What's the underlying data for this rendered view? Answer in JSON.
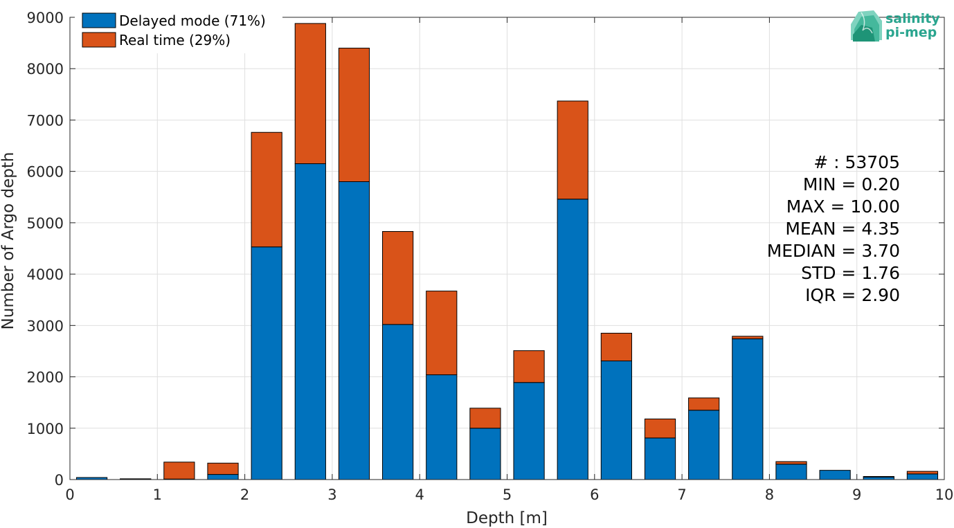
{
  "chart_data": {
    "type": "bar",
    "stacked": true,
    "xlabel": "Depth [m]",
    "ylabel": "Number of Argo depth",
    "xlim": [
      0,
      10
    ],
    "ylim": [
      0,
      9000
    ],
    "xticks": [
      "0",
      "1",
      "2",
      "3",
      "4",
      "5",
      "6",
      "7",
      "8",
      "9",
      "10"
    ],
    "yticks": [
      "0",
      "1000",
      "2000",
      "3000",
      "4000",
      "5000",
      "6000",
      "7000",
      "8000",
      "9000"
    ],
    "grid": true,
    "legend_position": "top-left",
    "bin_width": 0.5,
    "x": [
      0.25,
      0.75,
      1.25,
      1.75,
      2.25,
      2.75,
      3.25,
      3.75,
      4.25,
      4.75,
      5.25,
      5.75,
      6.25,
      6.75,
      7.25,
      7.75,
      8.25,
      8.75,
      9.25,
      9.75
    ],
    "series": [
      {
        "name": "Delayed mode (71%)",
        "color": "#0072bd",
        "values": [
          40,
          10,
          10,
          100,
          4530,
          6150,
          5800,
          3020,
          2040,
          1000,
          1890,
          5460,
          2310,
          810,
          1350,
          2740,
          300,
          180,
          50,
          110
        ]
      },
      {
        "name": "Real time (29%)",
        "color": "#d95319",
        "values": [
          0,
          5,
          330,
          220,
          2230,
          2730,
          2600,
          1810,
          1630,
          390,
          620,
          1910,
          540,
          370,
          240,
          50,
          50,
          0,
          10,
          50
        ]
      }
    ],
    "stats": [
      "# : 53705",
      "MIN = 0.20",
      "MAX =  10.00",
      "MEAN = 4.35",
      "MEDIAN = 3.70",
      "STD = 1.76",
      "IQR = 2.90"
    ]
  },
  "logo": {
    "line1": "salinity",
    "line2": "pi-mep",
    "color": "#2aa58f"
  }
}
